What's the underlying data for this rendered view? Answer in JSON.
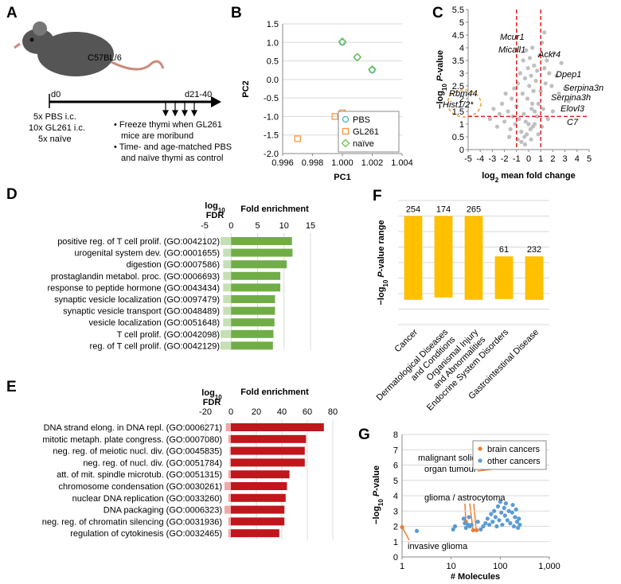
{
  "panel_labels": [
    "A",
    "B",
    "C",
    "D",
    "E",
    "F",
    "G"
  ],
  "diagram": {
    "strain": "C57BL/6",
    "start": "d0",
    "end": "d21-40",
    "groups": [
      "5x PBS i.c.",
      "10x GL261 i.c.",
      "5x naïve"
    ],
    "notes": [
      "• Freeze thymi when GL261",
      "mice are moribund",
      "• Time- and age-matched PBS",
      "and naïve thymi as control"
    ]
  },
  "chart_data": [
    {
      "type": "scatter",
      "xlabel": "PC1",
      "ylabel": "PC2",
      "xlim": [
        0.996,
        1.004
      ],
      "xticks": [
        0.996,
        0.998,
        {
          "value": 1,
          "label": "1.000"
        },
        1.002,
        1.004
      ],
      "ylim": [
        -2,
        1.5
      ],
      "yticks": [
        1.5,
        {
          "value": 1,
          "label": "1.0"
        },
        0.5,
        {
          "value": 0,
          "label": "0.0"
        },
        -0.5,
        {
          "value": -1,
          "label": "-1.0"
        },
        -1.5,
        {
          "value": -2,
          "label": "-2.0"
        }
      ],
      "grid": true,
      "legend": "lower right",
      "series": [
        {
          "name": "PBS",
          "color": "#4bacc6",
          "marker": "circle",
          "x": [
            1.0,
            1.001,
            1.002
          ],
          "values": [
            1.0,
            0.6,
            0.25
          ]
        },
        {
          "name": "GL261",
          "color": "#f79646",
          "marker": "square",
          "x": [
            0.997,
            0.9995,
            1.0
          ],
          "values": [
            -1.6,
            -1.0,
            -0.9
          ]
        },
        {
          "name": "naïve",
          "color": "#70c050",
          "marker": "diamond",
          "x": [
            1.0,
            1.001,
            1.002
          ],
          "values": [
            1.02,
            0.6,
            0.27
          ]
        }
      ]
    },
    {
      "type": "scatter",
      "xlabel": {
        "pre": "log",
        "sub": "2",
        "post": "mean fold change"
      },
      "ylabel": {
        "pre": "−log",
        "sub": "10",
        "italic": "P",
        "post": "-value"
      },
      "xlim": [
        -5,
        5
      ],
      "xticks": [
        -5,
        -4,
        -3,
        -2,
        -1,
        0,
        1,
        2,
        3,
        4,
        5
      ],
      "ylim": [
        0,
        5.5
      ],
      "yticks": [
        0,
        0.5,
        1,
        1.5,
        2,
        2.5,
        3,
        3.5,
        4,
        4.5,
        5,
        5.5
      ],
      "grid": false,
      "vlines": [
        -1,
        1
      ],
      "hline": 1.3,
      "threshold_color": "#e02020",
      "annotations": [
        "Mcur1",
        "Micall1",
        "Ackr4",
        "Dpep1",
        "Serpina3n",
        "Serpina3h",
        "Elovl3",
        "C7",
        "Rbm44",
        "Hist1/2*"
      ],
      "series": [
        {
          "color": "#bfbfbf",
          "marker": "dot",
          "x": [
            -3.2,
            -2.9,
            -2.6,
            -2.4,
            -2.2,
            -2.0,
            -1.9,
            -1.7,
            -1.5,
            -1.4,
            -1.3,
            -1.2,
            -1.1,
            -1.0,
            -0.9,
            -0.8,
            -0.7,
            -0.6,
            -0.5,
            -0.45,
            -0.4,
            -0.35,
            -0.3,
            -0.25,
            -0.2,
            -0.15,
            -0.1,
            -0.05,
            0,
            0.05,
            0.1,
            0.15,
            0.2,
            0.25,
            0.3,
            0.35,
            0.4,
            0.45,
            0.5,
            0.6,
            0.7,
            0.8,
            0.9,
            1.0,
            1.1,
            1.2,
            1.3,
            1.4,
            1.5,
            1.7,
            1.9,
            2.1,
            2.3,
            2.5,
            2.7,
            3.0,
            3.3,
            -0.6,
            -0.3,
            0.2,
            0.5,
            0.8,
            1.1,
            1.6,
            2.0,
            -1.6,
            -0.9,
            0.3,
            0.7,
            1.3
          ],
          "values": [
            1.2,
            1.6,
            0.9,
            1.4,
            1.8,
            1.1,
            2.2,
            1.5,
            0.8,
            2.0,
            1.3,
            2.4,
            1.0,
            1.7,
            2.6,
            1.2,
            3.0,
            0.7,
            2.2,
            3.5,
            1.4,
            0.5,
            2.8,
            1.1,
            3.9,
            0.6,
            2.0,
            3.2,
            1.0,
            2.5,
            3.6,
            0.8,
            2.9,
            1.6,
            4.0,
            0.9,
            2.3,
            3.3,
            1.5,
            2.7,
            3.1,
            1.8,
            3.7,
            2.3,
            4.2,
            1.6,
            3.2,
            2.6,
            3.5,
            3.0,
            2.5,
            3.8,
            2.9,
            2.2,
            3.4,
            2.4,
            1.9,
            0.3,
            0.2,
            0.4,
            1.0,
            0.6,
            0.9,
            1.2,
            1.5,
            0.5,
            0.4,
            1.8,
            1.3,
            4.6
          ]
        }
      ]
    },
    {
      "type": "diverging_hbar",
      "fdr_label": {
        "pre": "log",
        "sub": "10",
        "line2": "FDR"
      },
      "value_label": "Fold enrichment",
      "xlim": [
        -5,
        15
      ],
      "xticks": [
        -5,
        0,
        5,
        10,
        15
      ],
      "color": "#70ad47",
      "fdr_color": "#c5e0b4",
      "categories": [
        "positive reg. of T cell prolif. (GO:0042102)",
        "urogenital system dev. (GO:0001655)",
        "digestion (GO:0007586)",
        "prostaglandin metabol. proc. (GO:0006693)",
        "response to peptide hormone (GO:0043434)",
        "synaptic vesicle localization (GO:0097479)",
        "synaptic vesicle transport (GO:0048489)",
        "vesicle localization (GO:0051648)",
        "T cell prolif. (GO:0042098)",
        "reg. of T cell prolif. (GO:0042129)"
      ],
      "values": [
        11.5,
        11.6,
        10.5,
        9.3,
        9.3,
        8.3,
        8.3,
        8.2,
        8.0,
        7.9
      ],
      "fdr_values": [
        -2,
        -1.5,
        -1.5,
        -1.5,
        -1.5,
        -1.5,
        -1.5,
        -1.5,
        -2,
        -2
      ]
    },
    {
      "type": "diverging_hbar",
      "fdr_label": {
        "pre": "log",
        "sub": "10",
        "line2": "FDR"
      },
      "value_label": "Fold enrichment",
      "xlim": [
        -20,
        80
      ],
      "xticks": [
        -20,
        0,
        20,
        40,
        60,
        80
      ],
      "color": "#c0161c",
      "fdr_color": "#f4a6a6",
      "categories": [
        "DNA strand elong. in DNA repl. (GO:0006271)",
        "mitotic metaph. plate congress. (GO:0007080)",
        "neg. reg. of meiotic nucl. div. (GO:0045835)",
        "neg. reg. of nucl. div. (GO:0051784)",
        "att. of mit. spindle microtub. (GO:0051315)",
        "chromosome condensation (GO:0030261)",
        "nuclear DNA replication (GO:0033260)",
        "DNA packaging (GO:0006323)",
        "neg. reg. of chromatin silencing (GO:0031936)",
        "regulation of cytokinesis (GO:0032465)"
      ],
      "values": [
        73,
        59,
        58,
        58,
        46,
        44,
        43,
        42,
        42,
        38
      ],
      "fdr_values": [
        -4,
        -2,
        -1,
        -1,
        -2,
        -5,
        -2,
        -5,
        -2,
        -2
      ]
    },
    {
      "type": "range_bar",
      "ylabel": {
        "pre": "−log",
        "sub": "10",
        "italic": "P",
        "post": "-value range"
      },
      "ylim": [
        0,
        8
      ],
      "yticks": [
        0,
        1,
        2,
        3,
        4,
        5,
        6,
        7,
        8
      ],
      "ytick_labels": false,
      "color": "#ffc000",
      "categories": [
        [
          "Cancer"
        ],
        [
          "Dermatological Diseases",
          "and Conditions"
        ],
        [
          "Organismal Injury",
          "and Abnormalities"
        ],
        [
          "Endocrine System Disorders"
        ],
        [
          "Gastrointestinal Disease"
        ]
      ],
      "low": [
        1.6,
        1.75,
        1.6,
        1.65,
        1.6
      ],
      "high": [
        7.0,
        7.0,
        7.0,
        4.4,
        4.4
      ],
      "counts": [
        254,
        174,
        265,
        61,
        232
      ]
    },
    {
      "type": "scatter",
      "xscale": "log",
      "xlabel": "# Molecules",
      "ylabel": {
        "pre": "−log",
        "sub": "10",
        "italic": "P",
        "post": "-value"
      },
      "xlim": [
        1,
        1000
      ],
      "xticks": [
        1,
        10,
        100,
        {
          "value": 1000,
          "label": "1,000"
        }
      ],
      "ylim": [
        0,
        8
      ],
      "yticks": [
        0,
        1,
        2,
        3,
        4,
        5,
        6,
        7,
        8
      ],
      "grid": true,
      "legend": "upper right",
      "annotations": [
        "malignant solid",
        "organ tumour",
        "glioma / astrocytoma",
        "invasive glioma"
      ],
      "series": [
        {
          "name": "brain cancers",
          "color": "#ed7d31",
          "marker": "dot",
          "x": [
            1,
            20,
            28,
            33,
            170
          ],
          "values": [
            1.95,
            2.3,
            1.75,
            1.75,
            5.85
          ]
        },
        {
          "name": "other cancers",
          "color": "#5b9bd5",
          "marker": "dot",
          "x": [
            2,
            11,
            12,
            18,
            19,
            20,
            22,
            23,
            24,
            26,
            35,
            40,
            45,
            50,
            55,
            60,
            65,
            70,
            75,
            80,
            85,
            90,
            95,
            100,
            105,
            110,
            120,
            125,
            130,
            140,
            150,
            160,
            165,
            170,
            175,
            180,
            190,
            200,
            210,
            220,
            230,
            240,
            250
          ],
          "values": [
            1.7,
            1.8,
            2.0,
            2.5,
            2.2,
            1.9,
            2.1,
            2.6,
            2.0,
            2.1,
            2.3,
            1.8,
            2.0,
            2.2,
            2.5,
            2.1,
            2.8,
            2.3,
            3.0,
            2.6,
            2.0,
            3.3,
            2.4,
            3.6,
            2.9,
            2.1,
            3.2,
            2.7,
            3.5,
            2.4,
            3.0,
            2.2,
            6.9,
            6.2,
            2.9,
            3.4,
            2.0,
            2.6,
            3.1,
            2.3,
            1.9,
            2.5,
            2.1
          ]
        }
      ]
    }
  ]
}
